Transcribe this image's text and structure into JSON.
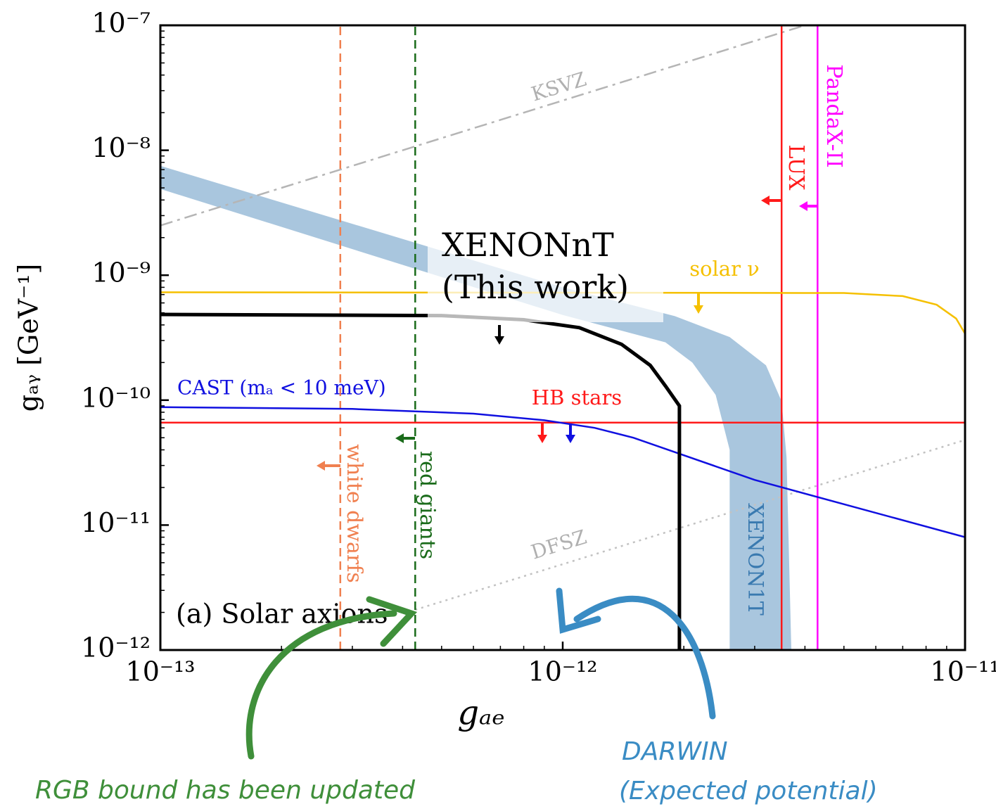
{
  "chart_data": {
    "type": "line",
    "x_label": "gₐₑ",
    "y_label": "gₐᵧ [GeV⁻¹]",
    "xscale": "log",
    "yscale": "log",
    "xlim": [
      1e-13,
      1e-11
    ],
    "ylim": [
      1e-12,
      1e-07
    ],
    "xticks": [
      {
        "value": 1e-13,
        "label": "10⁻¹³"
      },
      {
        "value": 1e-12,
        "label": "10⁻¹²"
      },
      {
        "value": 1e-11,
        "label": "10⁻¹¹"
      }
    ],
    "yticks": [
      {
        "value": 1e-12,
        "label": "10⁻¹²"
      },
      {
        "value": 1e-11,
        "label": "10⁻¹¹"
      },
      {
        "value": 1e-10,
        "label": "10⁻¹⁰"
      },
      {
        "value": 1e-09,
        "label": "10⁻⁹"
      },
      {
        "value": 1e-08,
        "label": "10⁻⁸"
      },
      {
        "value": 1e-07,
        "label": "10⁻⁷"
      }
    ],
    "minor_ticks": true,
    "series": [
      {
        "name": "KSVZ",
        "color": "#b5b5b5",
        "style": "dashdot",
        "x": [
          1e-13,
          4e-12
        ],
        "y": [
          2.5e-09,
          1e-07
        ]
      },
      {
        "name": "DFSZ",
        "color": "#c2c2c2",
        "style": "dotted",
        "x": [
          4.3e-13,
          1e-11
        ],
        "y": [
          2.1e-12,
          4.8e-11
        ]
      },
      {
        "name": "white dwarfs",
        "color": "#f08050",
        "style": "dashed",
        "x": [
          2.8e-13,
          2.8e-13
        ],
        "y": [
          1e-12,
          1e-07
        ]
      },
      {
        "name": "red giants",
        "color": "#1a6b1a",
        "style": "dashed",
        "x": [
          4.3e-13,
          4.3e-13
        ],
        "y": [
          1e-12,
          1e-07
        ]
      },
      {
        "name": "LUX",
        "color": "#ff1a1a",
        "style": "solid",
        "x": [
          3.5e-12,
          3.5e-12
        ],
        "y": [
          1e-12,
          1e-07
        ]
      },
      {
        "name": "PandaX-II",
        "color": "#ff00ff",
        "style": "solid",
        "x": [
          4.3e-12,
          4.3e-12
        ],
        "y": [
          1e-12,
          1e-07
        ]
      },
      {
        "name": "HB stars",
        "color": "#ff1a1a",
        "style": "solid",
        "x": [
          1e-13,
          1e-11
        ],
        "y": [
          6.6e-11,
          6.6e-11
        ]
      },
      {
        "name": "solar ν",
        "color": "#f5c000",
        "style": "solid",
        "x": [
          1e-13,
          5e-12,
          7e-12,
          8.5e-12,
          9.5e-12,
          1e-11
        ],
        "y": [
          7.3e-10,
          7.2e-10,
          6.8e-10,
          5.8e-10,
          4.5e-10,
          3.4e-10
        ]
      },
      {
        "name": "CAST (mₐ < 10 meV)",
        "color": "#1010e0",
        "style": "solid",
        "x": [
          1e-13,
          3e-13,
          6e-13,
          9e-13,
          1.2e-12,
          1.5e-12,
          3e-12,
          1e-11
        ],
        "y": [
          8.8e-11,
          8.5e-11,
          7.8e-11,
          6.9e-11,
          6e-11,
          5e-11,
          2.3e-11,
          8e-12
        ]
      },
      {
        "name": "XENONnT",
        "color": "#000000",
        "style": "thick",
        "x": [
          1e-13,
          5e-13,
          8e-13,
          1.1e-12,
          1.4e-12,
          1.65e-12,
          1.8e-12,
          1.95e-12,
          1.95e-12
        ],
        "y": [
          4.85e-10,
          4.75e-10,
          4.4e-10,
          3.8e-10,
          2.8e-10,
          1.9e-10,
          1.3e-10,
          9e-11,
          1e-12
        ]
      }
    ],
    "bands": [
      {
        "name": "XENON1T",
        "color": "#a9c6de",
        "x": [
          1e-13,
          1e-12,
          1.9e-12,
          2.6e-12,
          3.2e-12,
          3.5e-12,
          3.6e-12,
          3.7e-12,
          2.6e-12,
          2.6e-12,
          2.4e-12,
          2.1e-12,
          1.8e-12,
          1e-12,
          1e-13
        ],
        "y": [
          7.5e-09,
          8e-10,
          4.7e-10,
          3.2e-10,
          1.9e-10,
          9.8e-11,
          3.5e-11,
          1e-12,
          1e-12,
          4e-11,
          1.1e-10,
          2e-10,
          2.9e-10,
          4.8e-10,
          4.9e-09
        ]
      }
    ],
    "annotations": {
      "this_work": "(This work)",
      "panel": "(a) Solar axions",
      "rgb": "RGB bound has been updated",
      "darwin": "DARWIN",
      "darwin_note": "(Expected potential)"
    }
  }
}
